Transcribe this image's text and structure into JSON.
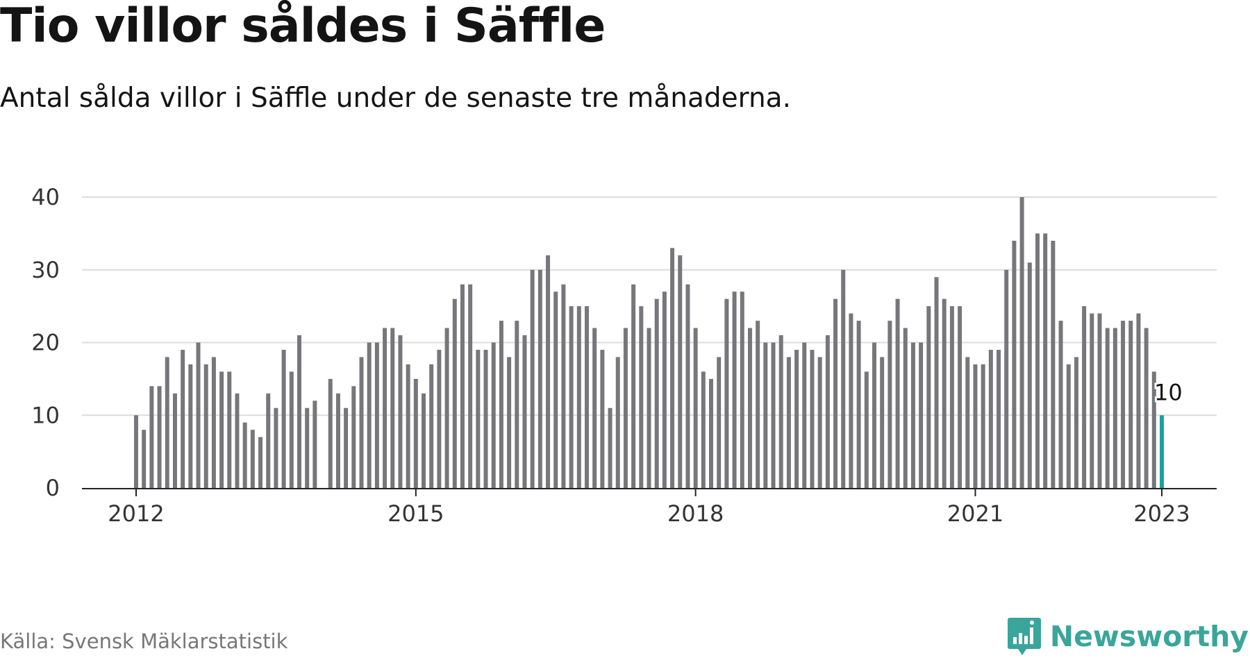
{
  "header": {
    "title": "Tio villor såldes i Säffle",
    "subtitle": "Antal sålda villor i Säffle under de senaste tre månaderna."
  },
  "footer": {
    "source": "Källa: Svensk Mäklarstatistik",
    "brand": "Newsworthy"
  },
  "colors": {
    "bar": "#77767b",
    "highlight": "#1aa396",
    "grid": "#dcdcdc",
    "axis": "#222222",
    "brand": "#3aa59a"
  },
  "chart_data": {
    "type": "bar",
    "title": "Tio villor såldes i Säffle",
    "subtitle": "Antal sålda villor i Säffle under de senaste tre månaderna.",
    "xlabel": "",
    "ylabel": "",
    "ylim": [
      0,
      40
    ],
    "yticks": [
      "0",
      "10",
      "20",
      "30",
      "40"
    ],
    "xticks": [
      "2012",
      "2015",
      "2018",
      "2021",
      "2023"
    ],
    "x_start": "2012-01",
    "x_end": "2023-01",
    "grid": true,
    "legend": "none",
    "highlight_label": "10",
    "values": [
      10,
      8,
      14,
      14,
      18,
      13,
      19,
      17,
      20,
      17,
      18,
      16,
      16,
      13,
      9,
      8,
      7,
      13,
      11,
      19,
      16,
      21,
      11,
      12,
      null,
      15,
      13,
      11,
      14,
      18,
      20,
      20,
      22,
      22,
      21,
      17,
      15,
      13,
      17,
      19,
      22,
      26,
      28,
      28,
      19,
      19,
      20,
      23,
      18,
      23,
      21,
      30,
      30,
      32,
      27,
      28,
      25,
      25,
      25,
      22,
      19,
      11,
      18,
      22,
      28,
      25,
      22,
      26,
      27,
      33,
      32,
      28,
      22,
      16,
      15,
      18,
      26,
      27,
      27,
      22,
      23,
      20,
      20,
      21,
      18,
      19,
      20,
      19,
      18,
      21,
      26,
      30,
      24,
      23,
      16,
      20,
      18,
      23,
      26,
      22,
      20,
      20,
      25,
      29,
      26,
      25,
      25,
      18,
      17,
      17,
      19,
      19,
      30,
      34,
      40,
      31,
      35,
      35,
      34,
      23,
      17,
      18,
      25,
      24,
      24,
      22,
      22,
      23,
      23,
      24,
      22,
      16,
      10
    ]
  }
}
